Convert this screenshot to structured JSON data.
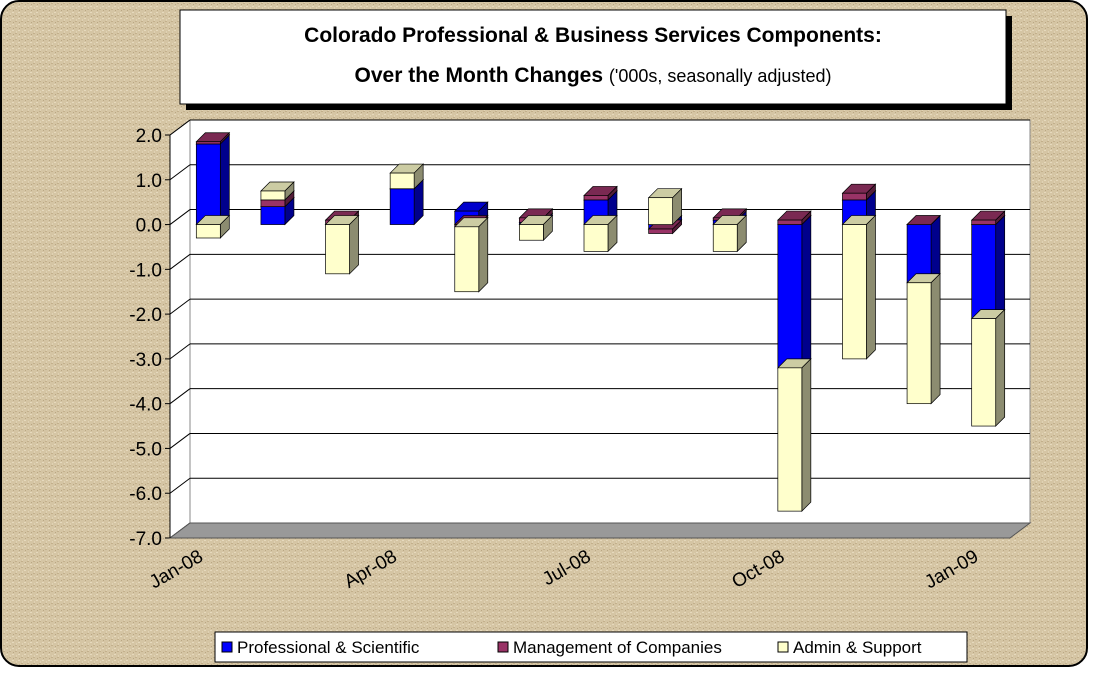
{
  "chart_data": {
    "type": "bar",
    "stacked": true,
    "title": [
      "Colorado Professional & Business Services Components:",
      "Over the Month Changes"
    ],
    "subtitle": "('000s, seasonally adjusted)",
    "categories": [
      "Jan-08",
      null,
      null,
      "Apr-08",
      null,
      null,
      "Jul-08",
      null,
      null,
      "Oct-08",
      null,
      null,
      "Jan-09"
    ],
    "series": [
      {
        "name": "Professional & Scientific",
        "color": "#0000ff",
        "values": [
          1.8,
          0.4,
          0.0,
          0.8,
          0.3,
          0.05,
          0.55,
          -0.1,
          0.1,
          -3.2,
          0.55,
          -1.3,
          -2.1
        ]
      },
      {
        "name": "Management of Companies",
        "color": "#993366",
        "values": [
          0.05,
          0.15,
          0.1,
          0.0,
          -0.05,
          0.1,
          0.1,
          -0.1,
          0.05,
          0.1,
          0.15,
          0.0,
          0.1
        ]
      },
      {
        "name": "Admin & Support",
        "color": "#ffffcc",
        "values": [
          -0.3,
          0.2,
          -1.1,
          0.35,
          -1.45,
          -0.35,
          -0.6,
          0.6,
          -0.6,
          -3.2,
          -3.0,
          -2.7,
          -2.4
        ]
      }
    ],
    "ylim": [
      -7,
      2
    ],
    "yticks": [
      {
        "value": -7,
        "label": "-7.0"
      },
      {
        "value": -6,
        "label": "-6.0"
      },
      {
        "value": -5,
        "label": "-5.0"
      },
      {
        "value": -4,
        "label": "-4.0"
      },
      {
        "value": -3,
        "label": "-3.0"
      },
      {
        "value": -2,
        "label": "-2.0"
      },
      {
        "value": -1,
        "label": "-1.0"
      },
      {
        "value": 0,
        "label": "0.0"
      },
      {
        "value": 1,
        "label": "1.0"
      },
      {
        "value": 2,
        "label": "2.0"
      }
    ],
    "grid": true,
    "legend": "bottom"
  }
}
